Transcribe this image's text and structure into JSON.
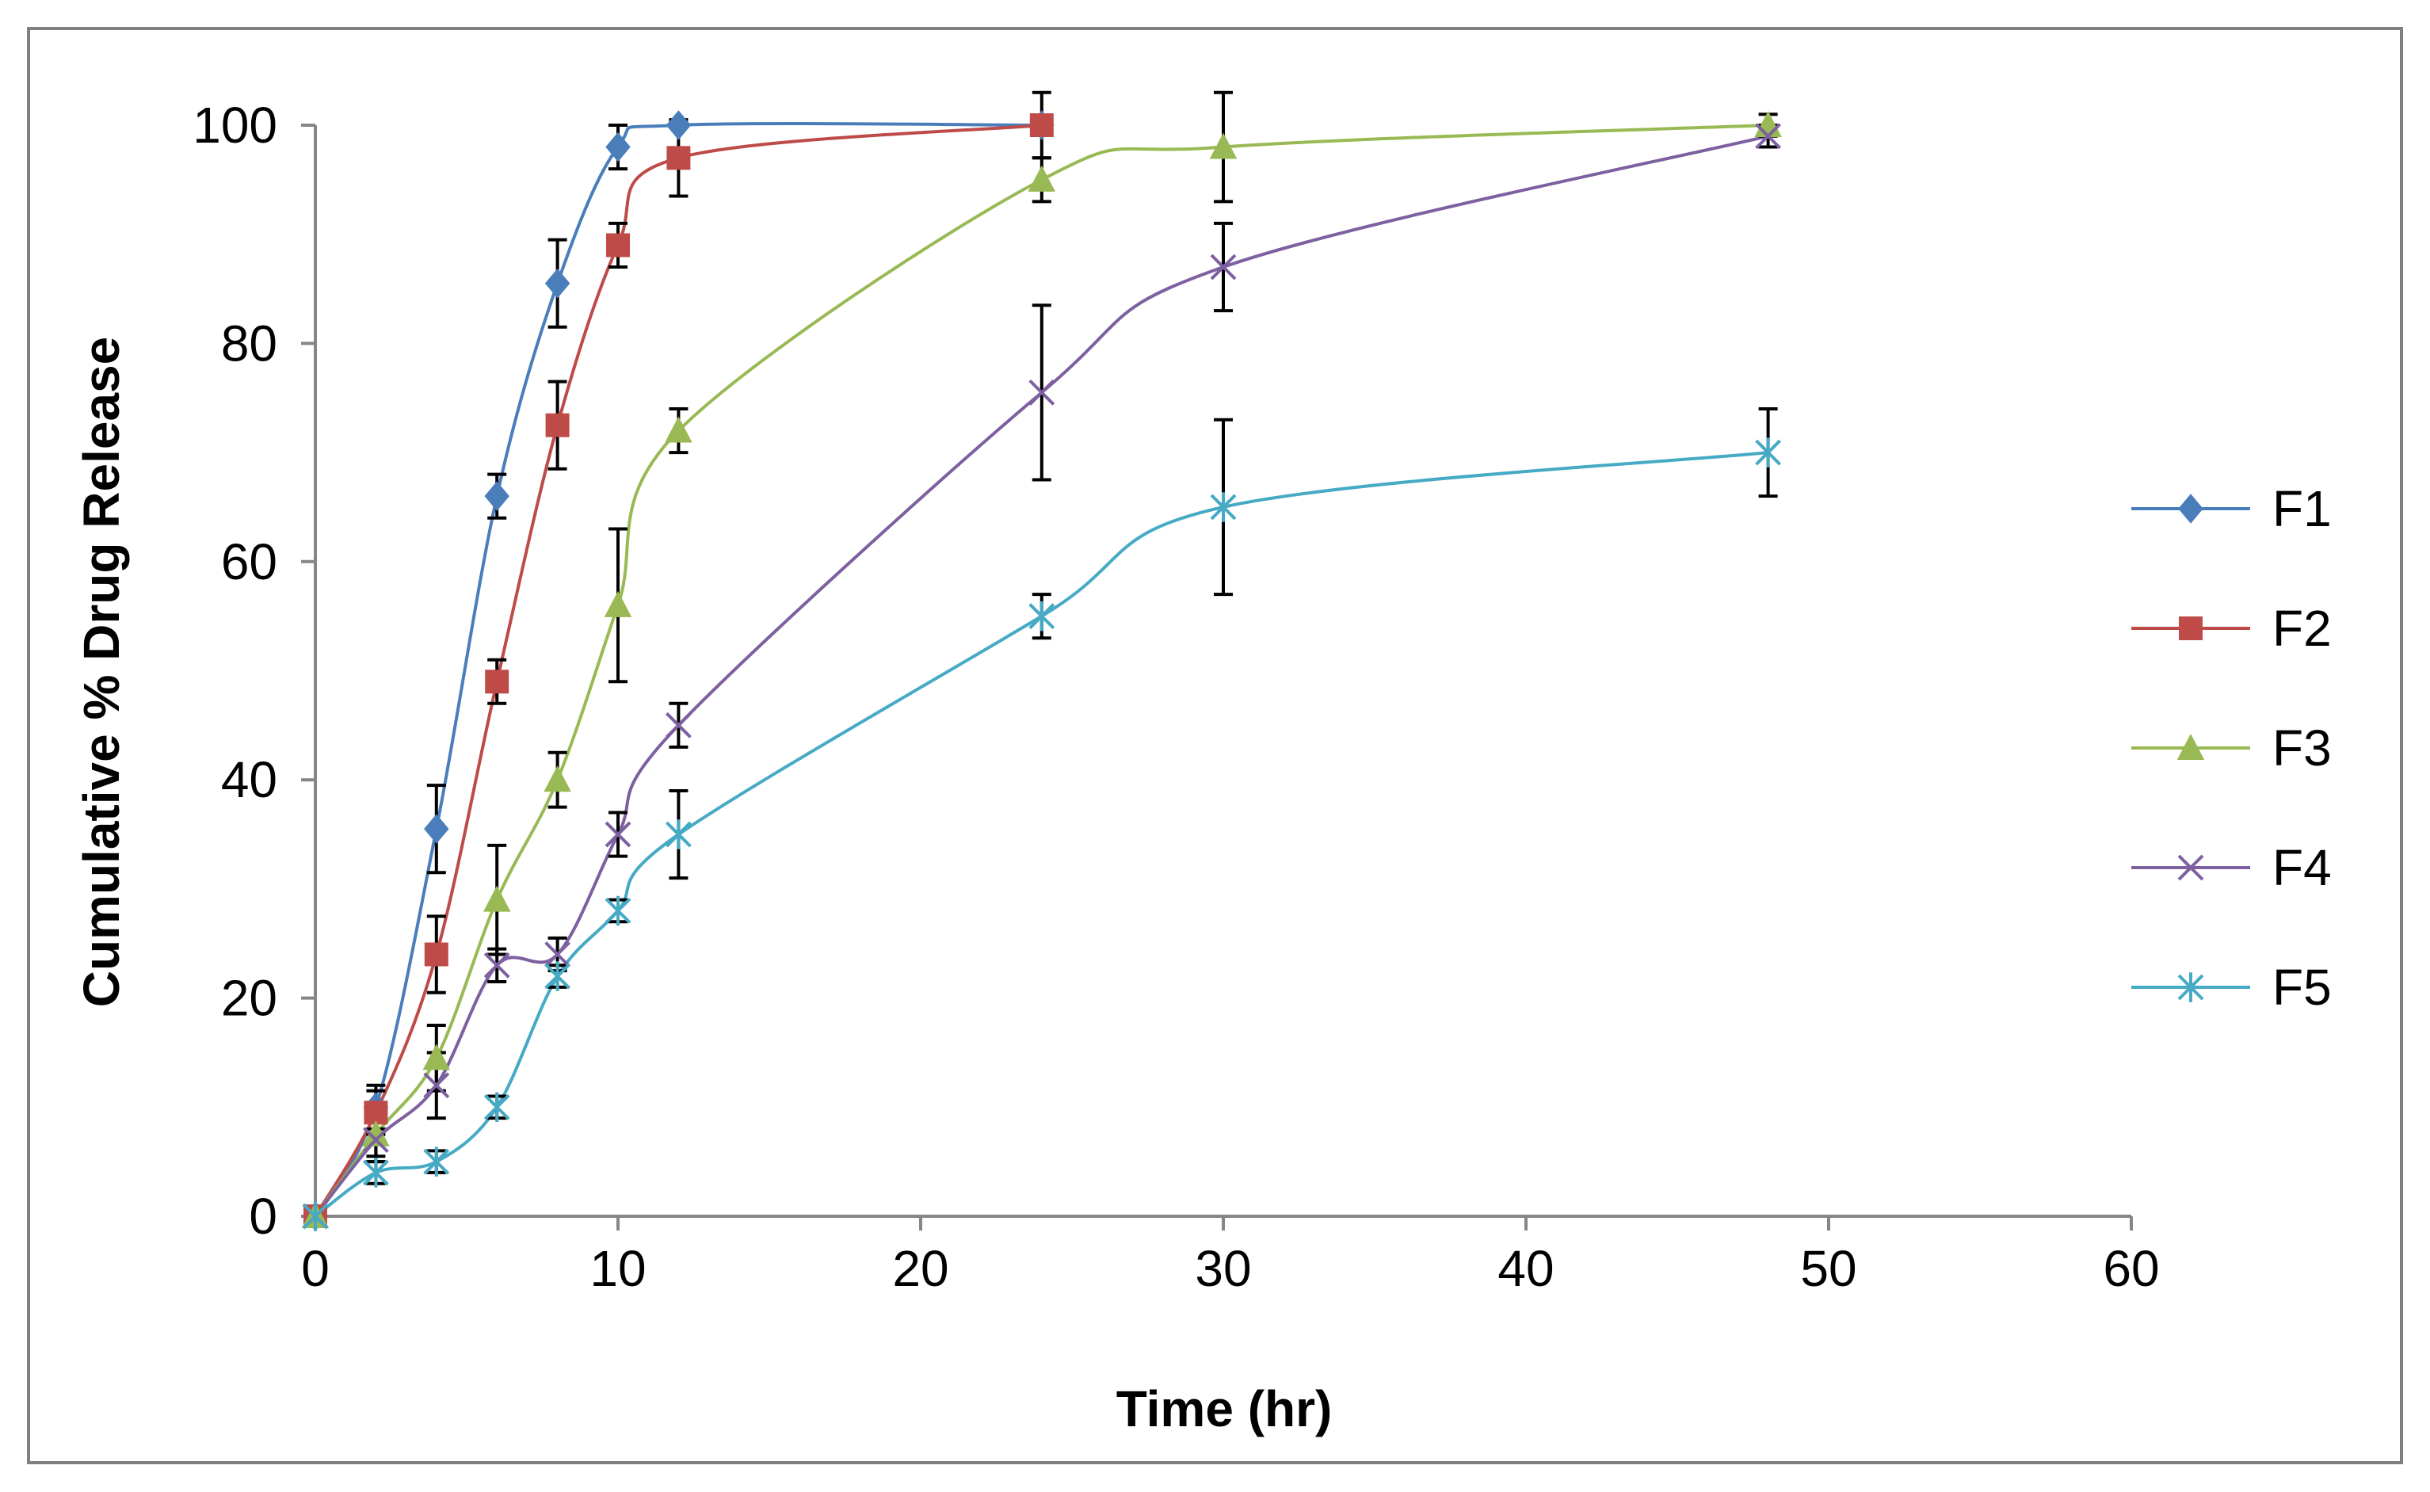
{
  "chart_data": {
    "type": "line",
    "title": "",
    "xlabel": "Time (hr)",
    "ylabel": "Cumulative % Drug Release",
    "xlim": [
      0,
      60
    ],
    "ylim": [
      0,
      100
    ],
    "xticks": [
      0,
      10,
      20,
      30,
      40,
      50,
      60
    ],
    "yticks": [
      0,
      20,
      40,
      60,
      80,
      100
    ],
    "grid": false,
    "legend_position": "right",
    "series": [
      {
        "name": "F1",
        "color": "#4a7ebb",
        "marker": "diamond",
        "x": [
          0,
          2,
          4,
          6,
          8,
          10,
          12,
          24
        ],
        "y": [
          0,
          10,
          35.5,
          66,
          85.5,
          98,
          100,
          100
        ],
        "err": [
          0,
          2,
          4,
          2,
          4,
          2,
          0,
          0
        ]
      },
      {
        "name": "F2",
        "color": "#be4b48",
        "marker": "square",
        "x": [
          0,
          2,
          4,
          6,
          8,
          10,
          12,
          24
        ],
        "y": [
          0,
          9.5,
          24,
          49,
          72.5,
          89,
          97,
          100
        ],
        "err": [
          0,
          2,
          3.5,
          2,
          4,
          2,
          3.5,
          3
        ]
      },
      {
        "name": "F3",
        "color": "#98b954",
        "marker": "triangle",
        "x": [
          0,
          2,
          4,
          6,
          8,
          10,
          12,
          24,
          30,
          48
        ],
        "y": [
          0,
          7.5,
          14.5,
          29,
          40,
          56,
          72,
          95,
          98,
          100
        ],
        "err": [
          0,
          2,
          3,
          5,
          2.5,
          7,
          2,
          2,
          5,
          1
        ]
      },
      {
        "name": "F4",
        "color": "#7d60a0",
        "marker": "x",
        "x": [
          0,
          2,
          4,
          6,
          8,
          10,
          12,
          24,
          30,
          48
        ],
        "y": [
          0,
          7,
          12,
          23,
          24,
          35,
          45,
          75.5,
          87,
          99
        ],
        "err": [
          0,
          2,
          3,
          1.5,
          1.5,
          2,
          2,
          8,
          4,
          1
        ]
      },
      {
        "name": "F5",
        "color": "#46aac5",
        "marker": "star",
        "x": [
          0,
          2,
          4,
          6,
          8,
          10,
          12,
          24,
          30,
          48
        ],
        "y": [
          0,
          4,
          5,
          10,
          22,
          28,
          35,
          55,
          65,
          70
        ],
        "err": [
          0,
          1,
          1,
          1,
          1,
          1,
          4,
          2,
          8,
          4
        ]
      }
    ]
  }
}
